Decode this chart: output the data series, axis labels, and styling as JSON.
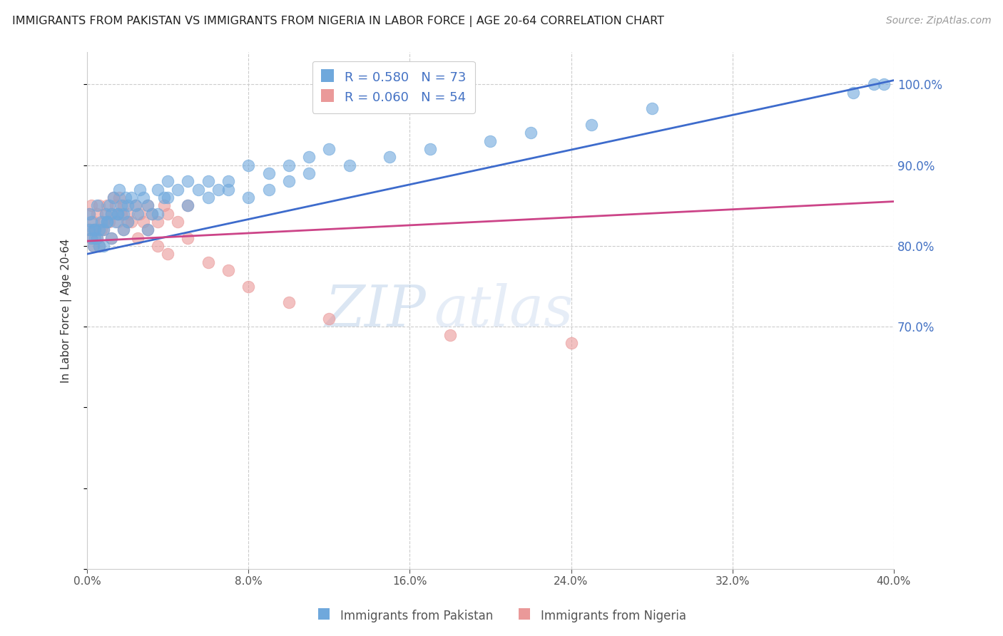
{
  "title": "IMMIGRANTS FROM PAKISTAN VS IMMIGRANTS FROM NIGERIA IN LABOR FORCE | AGE 20-64 CORRELATION CHART",
  "source": "Source: ZipAtlas.com",
  "ylabel": "In Labor Force | Age 20-64",
  "xlim": [
    0.0,
    0.4
  ],
  "ylim": [
    0.4,
    1.04
  ],
  "xticks": [
    0.0,
    0.08,
    0.16,
    0.24,
    0.32,
    0.4
  ],
  "right_yticks": [
    1.0,
    0.9,
    0.8,
    0.7
  ],
  "pakistan_color": "#6fa8dc",
  "nigeria_color": "#ea9999",
  "pakistan_line_color": "#3d6bcc",
  "nigeria_line_color": "#cc4488",
  "pakistan_R": 0.58,
  "pakistan_N": 73,
  "nigeria_R": 0.06,
  "nigeria_N": 54,
  "legend_label_pakistan": "Immigrants from Pakistan",
  "legend_label_nigeria": "Immigrants from Nigeria",
  "watermark": "ZIPAtlas",
  "axis_color": "#4472c4",
  "pak_line_x0": 0.0,
  "pak_line_y0": 0.79,
  "pak_line_x1": 0.4,
  "pak_line_y1": 1.005,
  "nig_line_x0": 0.0,
  "nig_line_y0": 0.806,
  "nig_line_x1": 0.4,
  "nig_line_y1": 0.855,
  "pakistan_x": [
    0.001,
    0.002,
    0.003,
    0.004,
    0.005,
    0.006,
    0.007,
    0.008,
    0.009,
    0.01,
    0.011,
    0.012,
    0.013,
    0.014,
    0.015,
    0.016,
    0.017,
    0.018,
    0.019,
    0.02,
    0.022,
    0.024,
    0.026,
    0.028,
    0.03,
    0.032,
    0.035,
    0.038,
    0.04,
    0.045,
    0.05,
    0.055,
    0.06,
    0.065,
    0.07,
    0.08,
    0.09,
    0.1,
    0.11,
    0.12,
    0.001,
    0.002,
    0.003,
    0.004,
    0.005,
    0.006,
    0.008,
    0.01,
    0.012,
    0.015,
    0.018,
    0.02,
    0.025,
    0.03,
    0.035,
    0.04,
    0.05,
    0.06,
    0.07,
    0.08,
    0.09,
    0.1,
    0.11,
    0.13,
    0.15,
    0.17,
    0.2,
    0.22,
    0.25,
    0.28,
    0.38,
    0.39,
    0.395
  ],
  "pakistan_y": [
    0.84,
    0.83,
    0.82,
    0.81,
    0.85,
    0.82,
    0.83,
    0.8,
    0.84,
    0.83,
    0.85,
    0.84,
    0.86,
    0.83,
    0.84,
    0.87,
    0.85,
    0.84,
    0.86,
    0.85,
    0.86,
    0.85,
    0.87,
    0.86,
    0.85,
    0.84,
    0.87,
    0.86,
    0.88,
    0.87,
    0.88,
    0.87,
    0.88,
    0.87,
    0.88,
    0.9,
    0.89,
    0.9,
    0.91,
    0.92,
    0.82,
    0.81,
    0.8,
    0.82,
    0.81,
    0.8,
    0.82,
    0.83,
    0.81,
    0.84,
    0.82,
    0.83,
    0.84,
    0.82,
    0.84,
    0.86,
    0.85,
    0.86,
    0.87,
    0.86,
    0.87,
    0.88,
    0.89,
    0.9,
    0.91,
    0.92,
    0.93,
    0.94,
    0.95,
    0.97,
    0.99,
    1.0,
    1.0
  ],
  "nigeria_x": [
    0.001,
    0.002,
    0.003,
    0.004,
    0.005,
    0.006,
    0.007,
    0.008,
    0.009,
    0.01,
    0.011,
    0.012,
    0.013,
    0.014,
    0.015,
    0.016,
    0.017,
    0.018,
    0.02,
    0.022,
    0.024,
    0.026,
    0.028,
    0.03,
    0.032,
    0.035,
    0.038,
    0.04,
    0.045,
    0.05,
    0.001,
    0.002,
    0.003,
    0.004,
    0.005,
    0.006,
    0.008,
    0.01,
    0.012,
    0.015,
    0.018,
    0.02,
    0.025,
    0.03,
    0.035,
    0.04,
    0.05,
    0.06,
    0.07,
    0.08,
    0.1,
    0.12,
    0.18,
    0.24
  ],
  "nigeria_y": [
    0.84,
    0.85,
    0.83,
    0.82,
    0.84,
    0.85,
    0.82,
    0.83,
    0.84,
    0.85,
    0.83,
    0.84,
    0.86,
    0.85,
    0.83,
    0.86,
    0.84,
    0.85,
    0.84,
    0.83,
    0.85,
    0.84,
    0.83,
    0.85,
    0.84,
    0.83,
    0.85,
    0.84,
    0.83,
    0.85,
    0.82,
    0.81,
    0.8,
    0.82,
    0.81,
    0.8,
    0.82,
    0.83,
    0.81,
    0.84,
    0.82,
    0.83,
    0.81,
    0.82,
    0.8,
    0.79,
    0.81,
    0.78,
    0.77,
    0.75,
    0.73,
    0.71,
    0.69,
    0.68
  ]
}
